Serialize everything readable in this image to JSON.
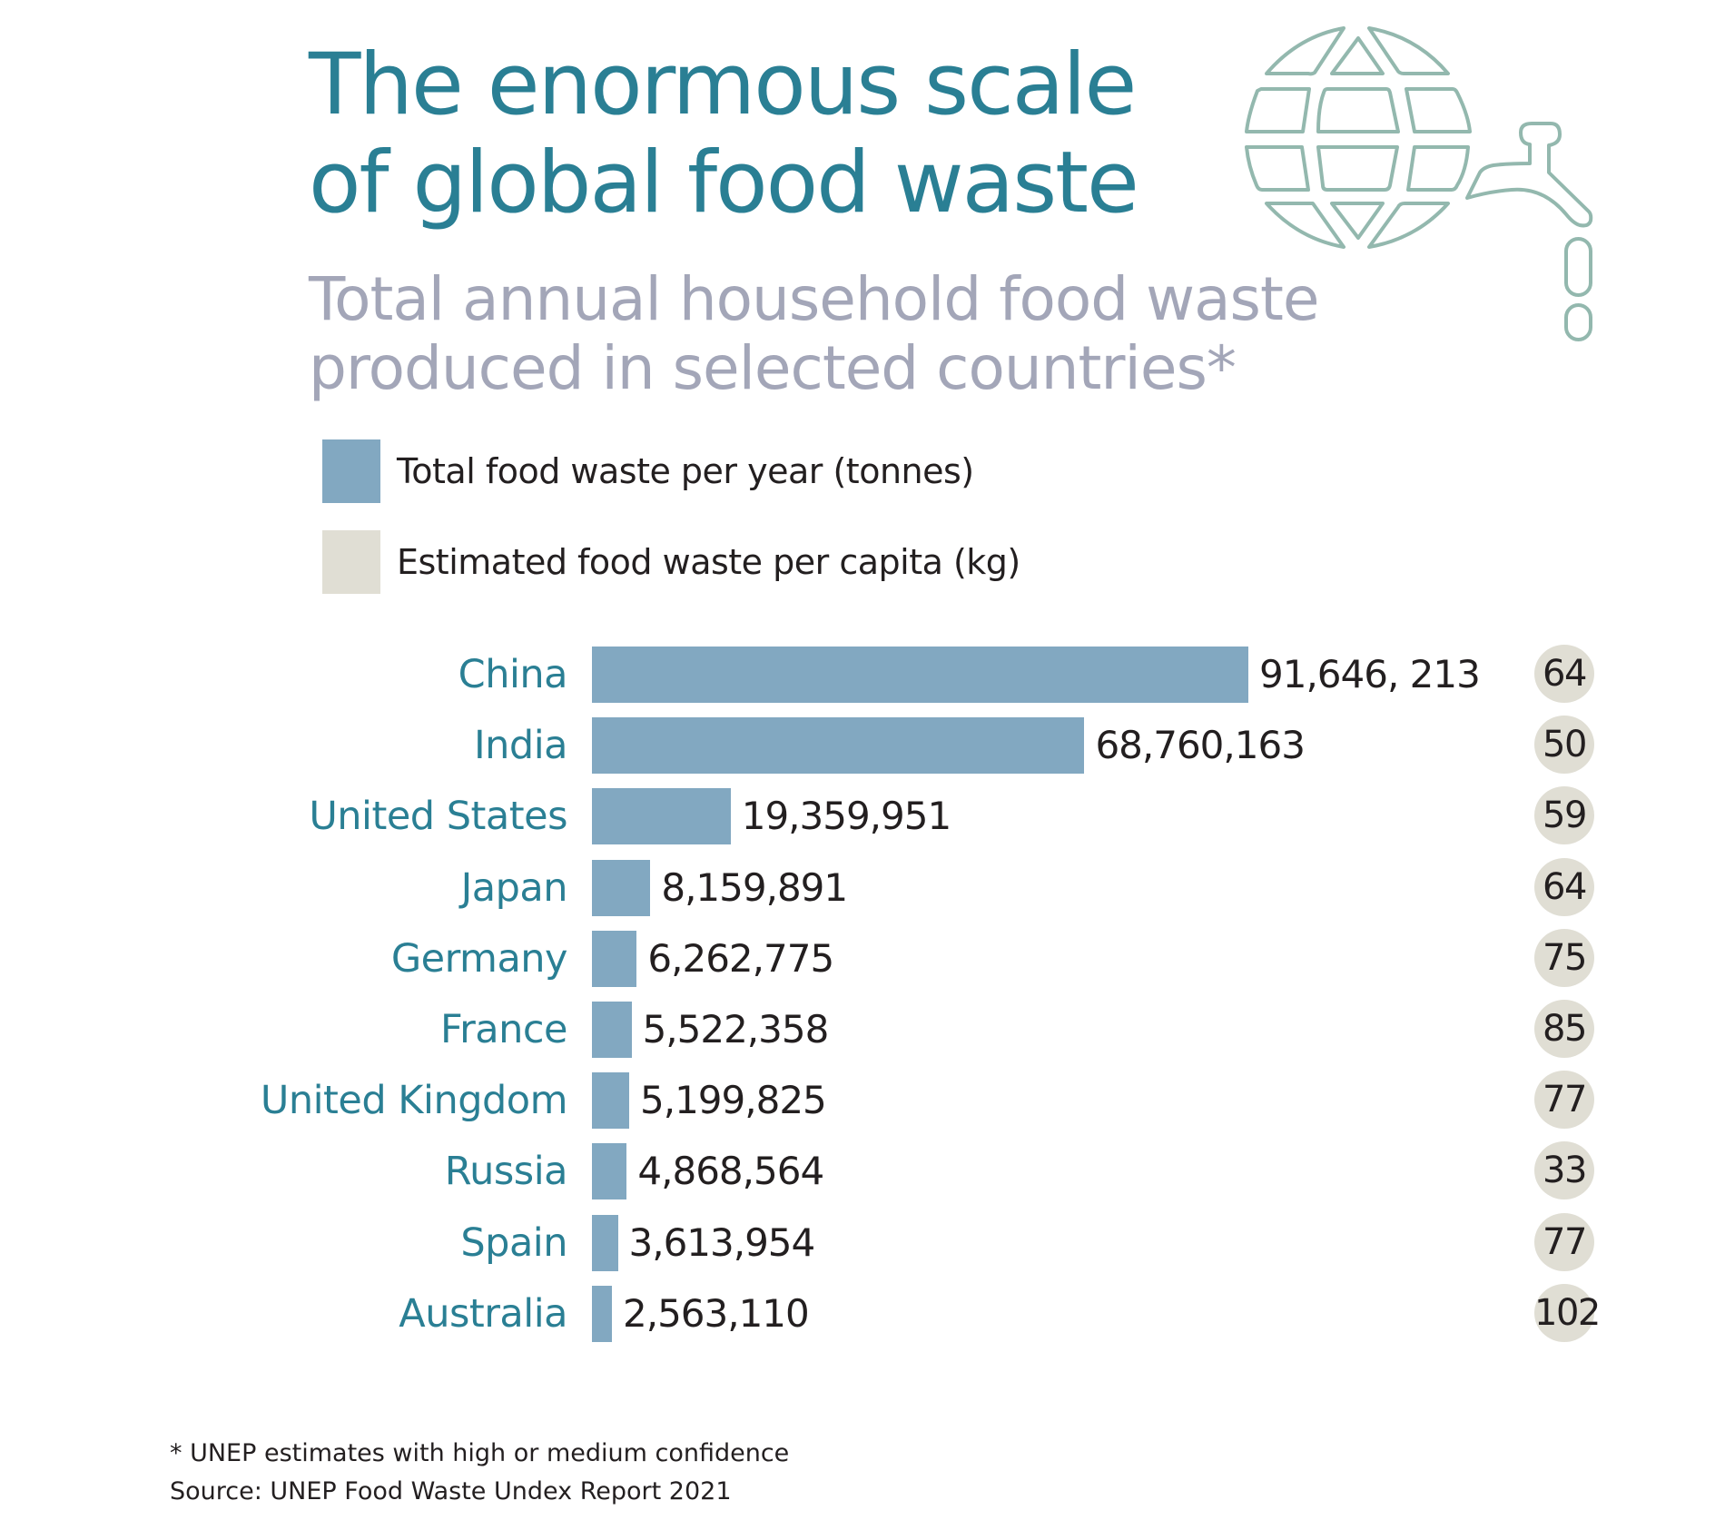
{
  "header": {
    "title_line1": "The enormous scale",
    "title_line2": "of global food waste",
    "subtitle_line1": "Total annual household food waste",
    "subtitle_line2": "produced in selected countries*"
  },
  "icon": {
    "name": "globe-tap-icon",
    "color": "#93b8ae"
  },
  "colors": {
    "title": "#2a7f94",
    "subtitle": "#a3a6b8",
    "bar": "#82a8c1",
    "capita_circle": "#e0ded4",
    "text": "#231f20"
  },
  "chart_data": {
    "type": "bar",
    "orientation": "horizontal",
    "title": "Total annual household food waste produced in selected countries*",
    "categories": [
      "China",
      "India",
      "United States",
      "Japan",
      "Germany",
      "France",
      "United Kingdom",
      "Russia",
      "Spain",
      "Australia"
    ],
    "series": [
      {
        "name": "Total food waste per year (tonnes)",
        "color": "#82a8c1",
        "values": [
          91646213,
          68760163,
          19359951,
          8159891,
          6262775,
          5522358,
          5199825,
          4868564,
          3613954,
          2563110
        ],
        "labels": [
          "91,646, 213",
          "68,760,163",
          "19,359,951",
          "8,159,891",
          "6,262,775",
          "5,522,358",
          "5,199,825",
          "4,868,564",
          "3,613,954",
          "2,563,110"
        ]
      },
      {
        "name": "Estimated food waste per capita (kg)",
        "color": "#e0ded4",
        "values": [
          64,
          50,
          59,
          64,
          75,
          85,
          77,
          33,
          77,
          102
        ],
        "labels": [
          "64",
          "50",
          "59",
          "64",
          "75",
          "85",
          "77",
          "33",
          "77",
          "102"
        ]
      }
    ],
    "legend": [
      {
        "label": "Total food waste per year (tonnes)",
        "color": "#82a8c1"
      },
      {
        "label": "Estimated food waste per capita (kg)",
        "color": "#e0ded4"
      }
    ],
    "legend_position": "top-left",
    "xlabel": "",
    "ylabel": "",
    "grid": false
  },
  "footnote": {
    "note": "* UNEP estimates with high or medium confidence",
    "source": "Source: UNEP Food Waste Undex Report 2021"
  }
}
